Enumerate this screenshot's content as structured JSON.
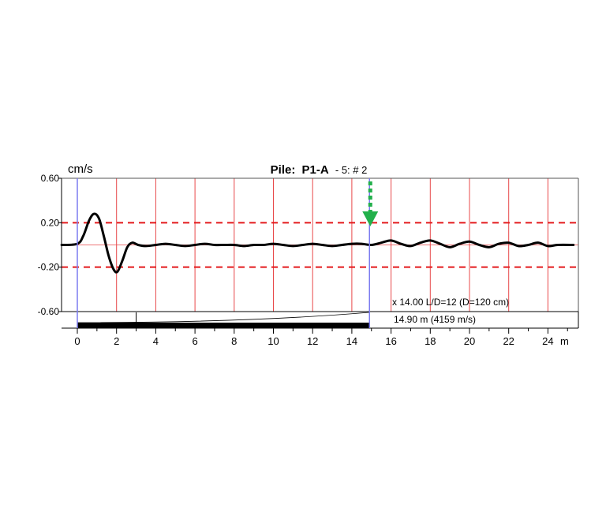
{
  "chart_data": {
    "type": "line",
    "title": "Pile:",
    "pile_id": "P1-A",
    "subtitle": "- 5: # 2",
    "unit_label": "cm/s",
    "x_unit": "m",
    "xlim": [
      -0.8,
      25.3
    ],
    "ylim": [
      -0.6,
      0.6
    ],
    "y_ticks": [
      0.6,
      0.2,
      -0.2,
      -0.6
    ],
    "y_tick_labels": [
      "0.60",
      "0.20",
      "-0.20",
      "-0.60"
    ],
    "x_ticks": [
      0,
      2,
      4,
      6,
      8,
      10,
      12,
      14,
      16,
      18,
      20,
      22,
      24
    ],
    "x_tick_labels": [
      "0",
      "2",
      "4",
      "6",
      "8",
      "10",
      "12",
      "14",
      "16",
      "18",
      "20",
      "22",
      "24"
    ],
    "threshold_lines": [
      0.2,
      -0.2
    ],
    "red_grid_x": [
      2,
      4,
      6,
      8,
      10,
      12,
      14,
      16,
      18,
      20,
      22,
      24
    ],
    "blue_markers_x": [
      0,
      14.9
    ],
    "arrow_x": 14.9,
    "series": [
      {
        "x": [
          -0.8,
          0,
          0.3,
          0.6,
          0.85,
          1.1,
          1.35,
          1.6,
          1.85,
          2.05,
          2.3,
          2.55,
          2.8,
          3.1,
          3.5,
          4,
          4.5,
          5,
          5.5,
          6,
          6.5,
          7,
          7.5,
          8,
          8.5,
          9,
          9.5,
          10,
          10.5,
          11,
          11.5,
          12,
          12.5,
          13,
          13.5,
          14,
          14.5,
          15,
          15.5,
          16,
          16.5,
          17,
          17.5,
          18,
          18.5,
          19,
          19.5,
          20,
          20.5,
          21,
          21.5,
          22,
          22.5,
          23,
          23.5,
          24,
          24.5,
          25.3
        ],
        "y": [
          0,
          0.01,
          0.08,
          0.22,
          0.28,
          0.24,
          0.08,
          -0.1,
          -0.22,
          -0.24,
          -0.14,
          -0.02,
          0.02,
          0.0,
          -0.01,
          0.0,
          0.01,
          0.0,
          -0.01,
          0.0,
          0.01,
          0.0,
          0.0,
          0.0,
          -0.01,
          0.0,
          0.0,
          0.01,
          0.0,
          -0.01,
          0.0,
          0.01,
          0.0,
          -0.01,
          0.0,
          0.01,
          0.01,
          0.0,
          0.02,
          0.04,
          0.01,
          -0.01,
          0.02,
          0.04,
          0.01,
          -0.02,
          0.01,
          0.03,
          0.0,
          -0.02,
          0.01,
          0.02,
          -0.01,
          0.0,
          0.02,
          -0.01,
          0.0,
          0.0
        ]
      }
    ],
    "annotations": {
      "ratio_text": "x 14.00  L/D=12 (D=120 cm)",
      "length_text": "14.90 m (4159 m/s)"
    },
    "colors": {
      "grid_red": "#e8484a",
      "threshold_red": "#e41a1c",
      "marker_blue": "#7b7bf0",
      "arrow_green": "#22b04b",
      "trace": "#000000"
    }
  }
}
